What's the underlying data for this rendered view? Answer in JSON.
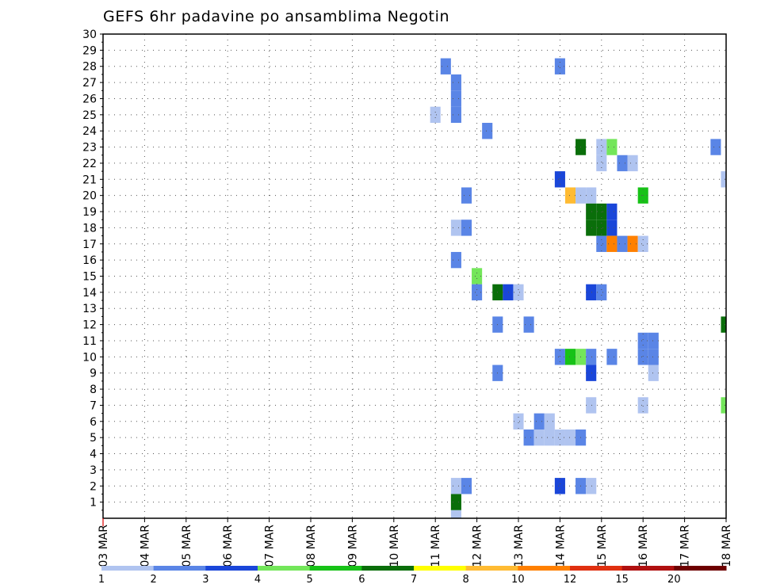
{
  "chart_data": {
    "type": "heatmap",
    "title": "GEFS 6hr padavine po ansamblima Negotin",
    "xlabel": "",
    "ylabel": "",
    "x_tick_labels": [
      "03 MAR",
      "04 MAR",
      "05 MAR",
      "06 MAR",
      "07 MAR",
      "08 MAR",
      "09 MAR",
      "10 MAR",
      "11 MAR",
      "12 MAR",
      "13 MAR",
      "14 MAR",
      "15 MAR",
      "16 MAR",
      "17 MAR",
      "18 MAR"
    ],
    "x_range_days": [
      0,
      15
    ],
    "y_range": [
      0,
      30
    ],
    "y_ticks": [
      1,
      2,
      3,
      4,
      5,
      6,
      7,
      8,
      9,
      10,
      11,
      12,
      13,
      14,
      15,
      16,
      17,
      18,
      19,
      20,
      21,
      22,
      23,
      24,
      25,
      26,
      27,
      28,
      29,
      30
    ],
    "grid": true,
    "grid_style": "dotted",
    "colorbar": {
      "labels": [
        "1",
        "2",
        "3",
        "4",
        "5",
        "6",
        "7",
        "8",
        "10",
        "12",
        "15",
        "20"
      ],
      "colors": [
        "#b0c4f0",
        "#5a85e6",
        "#1a46d9",
        "#73e65a",
        "#17c217",
        "#0a6e0a",
        "#ffff00",
        "#ffbb33",
        "#ff8000",
        "#e03010",
        "#b01010",
        "#6e0000"
      ]
    },
    "cells": [
      {
        "x": 8.25,
        "y": 28,
        "c": 2
      },
      {
        "x": 11.0,
        "y": 28,
        "c": 2
      },
      {
        "x": 8.5,
        "y": 27,
        "c": 2
      },
      {
        "x": 8.5,
        "y": 26,
        "c": 2
      },
      {
        "x": 8.0,
        "y": 25,
        "c": 1
      },
      {
        "x": 8.5,
        "y": 25,
        "c": 2
      },
      {
        "x": 9.25,
        "y": 24,
        "c": 2
      },
      {
        "x": 11.5,
        "y": 23,
        "c": 6
      },
      {
        "x": 12.0,
        "y": 23,
        "c": 1
      },
      {
        "x": 12.25,
        "y": 23,
        "c": 4
      },
      {
        "x": 14.75,
        "y": 23,
        "c": 2
      },
      {
        "x": 12.0,
        "y": 22,
        "c": 1
      },
      {
        "x": 12.5,
        "y": 22,
        "c": 2
      },
      {
        "x": 12.75,
        "y": 22,
        "c": 1
      },
      {
        "x": 11.0,
        "y": 21,
        "c": 3
      },
      {
        "x": 15.0,
        "y": 21,
        "c": 1
      },
      {
        "x": 8.75,
        "y": 20,
        "c": 2
      },
      {
        "x": 11.25,
        "y": 20,
        "c": 8
      },
      {
        "x": 11.5,
        "y": 20,
        "c": 1
      },
      {
        "x": 11.75,
        "y": 20,
        "c": 1
      },
      {
        "x": 13.0,
        "y": 20,
        "c": 5
      },
      {
        "x": 11.75,
        "y": 19,
        "c": 6
      },
      {
        "x": 12.0,
        "y": 19,
        "c": 6
      },
      {
        "x": 12.25,
        "y": 19,
        "c": 3
      },
      {
        "x": 8.5,
        "y": 18,
        "c": 1
      },
      {
        "x": 8.75,
        "y": 18,
        "c": 2
      },
      {
        "x": 11.75,
        "y": 18,
        "c": 6
      },
      {
        "x": 12.0,
        "y": 18,
        "c": 6
      },
      {
        "x": 12.25,
        "y": 18,
        "c": 3
      },
      {
        "x": 12.0,
        "y": 17,
        "c": 2
      },
      {
        "x": 12.25,
        "y": 17,
        "c": 9
      },
      {
        "x": 12.5,
        "y": 17,
        "c": 2
      },
      {
        "x": 12.75,
        "y": 17,
        "c": 9
      },
      {
        "x": 13.0,
        "y": 17,
        "c": 1
      },
      {
        "x": 8.5,
        "y": 16,
        "c": 2
      },
      {
        "x": 9.0,
        "y": 15,
        "c": 4
      },
      {
        "x": 9.0,
        "y": 14,
        "c": 2
      },
      {
        "x": 9.5,
        "y": 14,
        "c": 6
      },
      {
        "x": 9.75,
        "y": 14,
        "c": 3
      },
      {
        "x": 10.0,
        "y": 14,
        "c": 1
      },
      {
        "x": 11.75,
        "y": 14,
        "c": 3
      },
      {
        "x": 12.0,
        "y": 14,
        "c": 2
      },
      {
        "x": 9.5,
        "y": 12,
        "c": 2
      },
      {
        "x": 10.25,
        "y": 12,
        "c": 2
      },
      {
        "x": 15.0,
        "y": 12,
        "c": 6
      },
      {
        "x": 13.0,
        "y": 11,
        "c": 2
      },
      {
        "x": 13.25,
        "y": 11,
        "c": 2
      },
      {
        "x": 11.0,
        "y": 10,
        "c": 2
      },
      {
        "x": 11.25,
        "y": 10,
        "c": 5
      },
      {
        "x": 11.5,
        "y": 10,
        "c": 4
      },
      {
        "x": 11.75,
        "y": 10,
        "c": 2
      },
      {
        "x": 12.25,
        "y": 10,
        "c": 2
      },
      {
        "x": 13.0,
        "y": 10,
        "c": 2
      },
      {
        "x": 13.25,
        "y": 10,
        "c": 2
      },
      {
        "x": 9.5,
        "y": 9,
        "c": 2
      },
      {
        "x": 11.75,
        "y": 9,
        "c": 3
      },
      {
        "x": 13.25,
        "y": 9,
        "c": 1
      },
      {
        "x": 11.75,
        "y": 7,
        "c": 1
      },
      {
        "x": 13.0,
        "y": 7,
        "c": 1
      },
      {
        "x": 15.0,
        "y": 7,
        "c": 4
      },
      {
        "x": 10.0,
        "y": 6,
        "c": 1
      },
      {
        "x": 10.5,
        "y": 6,
        "c": 2
      },
      {
        "x": 10.75,
        "y": 6,
        "c": 1
      },
      {
        "x": 10.25,
        "y": 5,
        "c": 2
      },
      {
        "x": 10.5,
        "y": 5,
        "c": 1
      },
      {
        "x": 10.75,
        "y": 5,
        "c": 1
      },
      {
        "x": 11.0,
        "y": 5,
        "c": 1
      },
      {
        "x": 11.25,
        "y": 5,
        "c": 1
      },
      {
        "x": 11.5,
        "y": 5,
        "c": 2
      },
      {
        "x": 8.5,
        "y": 2,
        "c": 1
      },
      {
        "x": 8.75,
        "y": 2,
        "c": 2
      },
      {
        "x": 11.0,
        "y": 2,
        "c": 3
      },
      {
        "x": 11.5,
        "y": 2,
        "c": 2
      },
      {
        "x": 11.75,
        "y": 2,
        "c": 1
      },
      {
        "x": 8.5,
        "y": 1,
        "c": 6
      },
      {
        "x": 8.5,
        "y": 0,
        "c": 1
      }
    ]
  }
}
